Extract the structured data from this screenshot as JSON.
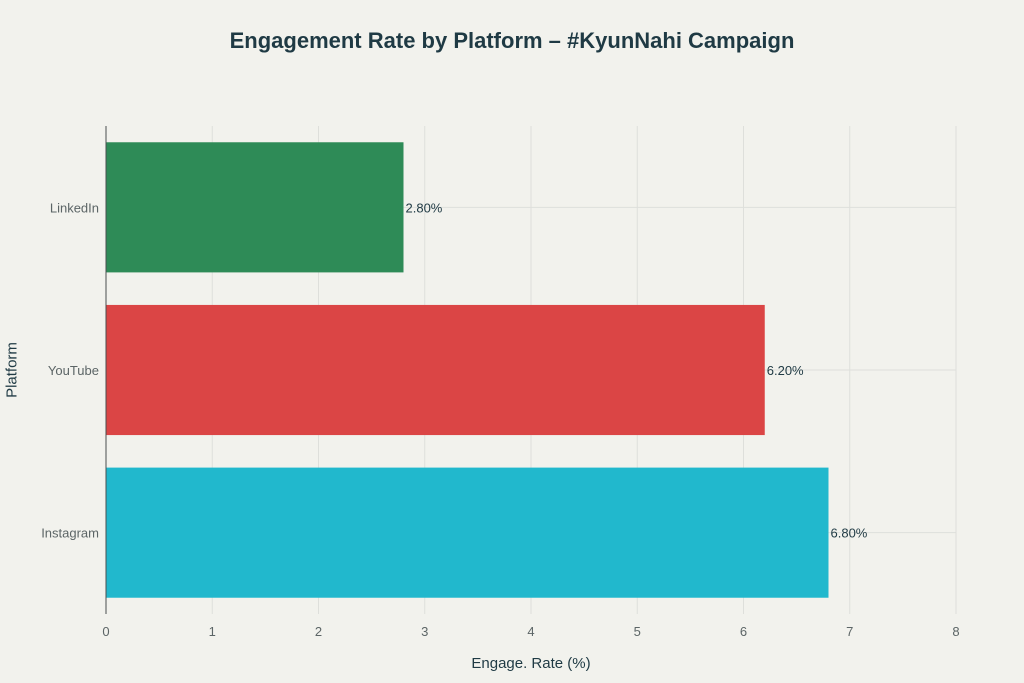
{
  "chart_data": {
    "type": "bar",
    "orientation": "horizontal",
    "title": "Engagement Rate by Platform – #KyunNahi Campaign",
    "xlabel": "Engage. Rate (%)",
    "ylabel": "Platform",
    "categories": [
      "LinkedIn",
      "YouTube",
      "Instagram"
    ],
    "values": [
      2.8,
      6.2,
      6.8
    ],
    "data_labels": [
      "2.80%",
      "6.20%",
      "6.80%"
    ],
    "colors": [
      "#2e8b57",
      "#db4545",
      "#21b8cd"
    ],
    "xlim": [
      0,
      8
    ],
    "xticks": [
      0,
      1,
      2,
      3,
      4,
      5,
      6,
      7,
      8
    ],
    "grid": true,
    "legend": "none"
  }
}
